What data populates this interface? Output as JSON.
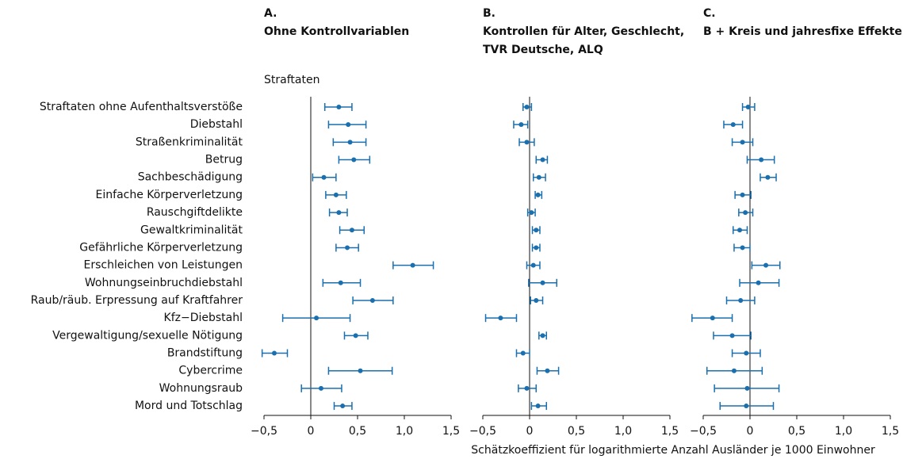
{
  "chart_data": [
    {
      "type": "errorbar",
      "title": [
        "A.",
        "Ohne Kontrollvariablen"
      ],
      "y_label": "Straftaten",
      "categories": [
        "Straftaten ohne Aufenthaltsverstöße",
        "Diebstahl",
        "Straßenkriminalität",
        "Betrug",
        "Sachbeschädigung",
        "Einfache Körperverletzung",
        "Rauschgiftdelikte",
        "Gewaltkriminalität",
        "Gefährliche Körperverletzung",
        "Erschleichen von Leistungen",
        "Wohnungseinbruchdiebstahl",
        "Raub/räub. Erpressung auf Kraftfahrer",
        "Kfz−Diebstahl",
        "Vergewaltigung/sexuelle Nötigung",
        "Brandstiftung",
        "Cybercrime",
        "Wohnungsraub",
        "Mord und Totschlag"
      ],
      "color": "#1a6faf",
      "values": [
        0.3,
        0.4,
        0.42,
        0.46,
        0.14,
        0.27,
        0.3,
        0.44,
        0.39,
        1.09,
        0.32,
        0.66,
        0.06,
        0.48,
        -0.39,
        0.53,
        0.11,
        0.34
      ],
      "lower": [
        0.15,
        0.19,
        0.24,
        0.3,
        0.02,
        0.16,
        0.2,
        0.31,
        0.27,
        0.88,
        0.13,
        0.45,
        -0.3,
        0.36,
        -0.52,
        0.19,
        -0.1,
        0.25
      ],
      "upper": [
        0.44,
        0.59,
        0.59,
        0.63,
        0.27,
        0.38,
        0.39,
        0.57,
        0.51,
        1.31,
        0.53,
        0.88,
        0.42,
        0.61,
        -0.25,
        0.87,
        0.33,
        0.44
      ],
      "xlim": [
        -0.5,
        1.5
      ],
      "xticks": [
        {
          "value": -0.5,
          "label": "−0,5"
        },
        0,
        {
          "value": 0.5,
          "label": "0,5"
        },
        {
          "value": 1.0,
          "label": "1,0"
        },
        {
          "value": 1.5,
          "label": "1,5"
        }
      ]
    },
    {
      "type": "errorbar",
      "title": [
        "B.",
        "Kontrollen für Alter, Geschlecht,",
        "TVR Deutsche, ALQ"
      ],
      "color": "#1a6faf",
      "values": [
        -0.03,
        -0.09,
        -0.03,
        0.14,
        0.1,
        0.09,
        0.02,
        0.07,
        0.07,
        0.04,
        0.14,
        0.07,
        -0.31,
        0.14,
        -0.07,
        0.19,
        -0.03,
        0.09
      ],
      "lower": [
        -0.07,
        -0.17,
        -0.11,
        0.07,
        0.04,
        0.06,
        -0.02,
        0.03,
        0.03,
        -0.03,
        -0.01,
        0.01,
        -0.47,
        0.1,
        -0.14,
        0.08,
        -0.12,
        0.02
      ],
      "upper": [
        0.02,
        -0.02,
        0.05,
        0.19,
        0.17,
        0.13,
        0.06,
        0.11,
        0.11,
        0.11,
        0.29,
        0.14,
        -0.14,
        0.18,
        0.0,
        0.31,
        0.07,
        0.18
      ],
      "xlim": [
        -0.5,
        1.5
      ],
      "xticks": [
        {
          "value": -0.5,
          "label": "−0,5"
        },
        0,
        {
          "value": 0.5,
          "label": "0,5"
        },
        {
          "value": 1.0,
          "label": "1,0"
        },
        {
          "value": 1.5,
          "label": "1,5"
        }
      ]
    },
    {
      "type": "errorbar",
      "title": [
        "C.",
        "B + Kreis und jahresfixe Effekte"
      ],
      "x_label": "Schätzkoeffizient für logarithmierte Anzahl Ausländer je 1000 Einwohner",
      "color": "#1a6faf",
      "values": [
        -0.02,
        -0.18,
        -0.08,
        0.12,
        0.19,
        -0.08,
        -0.05,
        -0.11,
        -0.08,
        0.17,
        0.09,
        -0.1,
        -0.4,
        -0.19,
        -0.04,
        -0.17,
        -0.03,
        -0.04
      ],
      "lower": [
        -0.08,
        -0.28,
        -0.19,
        -0.03,
        0.11,
        -0.16,
        -0.12,
        -0.18,
        -0.17,
        0.02,
        -0.11,
        -0.25,
        -0.62,
        -0.39,
        -0.19,
        -0.46,
        -0.38,
        -0.32
      ],
      "upper": [
        0.05,
        -0.08,
        0.03,
        0.26,
        0.28,
        0.01,
        0.03,
        -0.03,
        0.0,
        0.32,
        0.31,
        0.05,
        -0.19,
        0.01,
        0.11,
        0.13,
        0.31,
        0.25
      ],
      "xlim": [
        -0.5,
        1.5
      ],
      "xticks": [
        {
          "value": -0.5,
          "label": "−0,5"
        },
        0,
        {
          "value": 0.5,
          "label": "0,5"
        },
        {
          "value": 1.0,
          "label": "1,0"
        },
        {
          "value": 1.5,
          "label": "1,5"
        }
      ]
    }
  ]
}
